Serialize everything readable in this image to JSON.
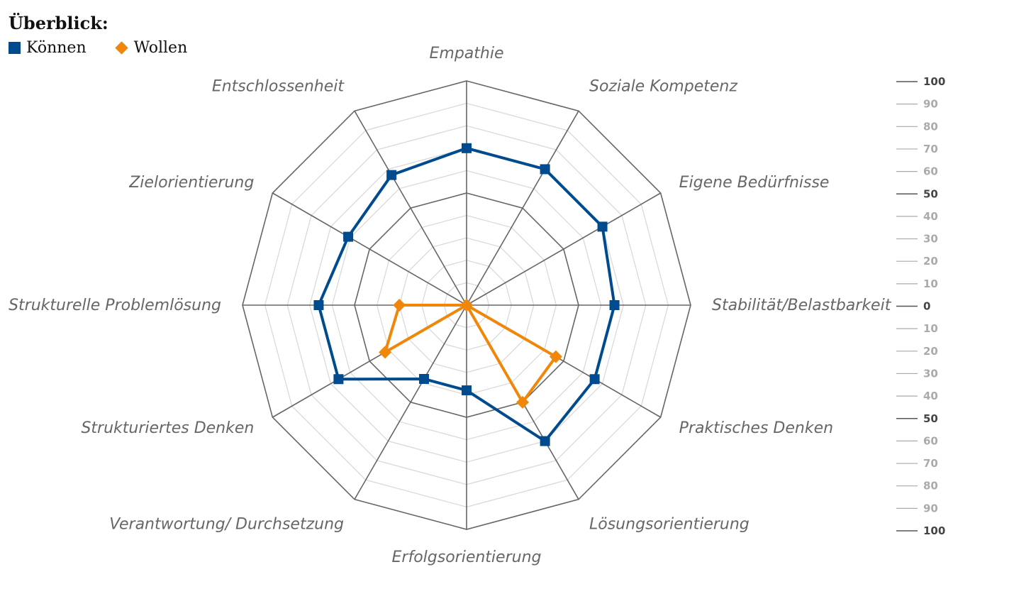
{
  "header": {
    "title": "Überblick:"
  },
  "chart_data": {
    "type": "radar",
    "title": "Überblick:",
    "axes": [
      "Empathie",
      "Soziale Kompetenz",
      "Eigene Bedürfnisse",
      "Stabilität/Belastbarkeit",
      "Praktisches Denken",
      "Lösungsorientierung",
      "Erfolgsorientierung",
      "Verantwortung/ Durchsetzung",
      "Strukturiertes Denken",
      "Strukturelle Problemlösung",
      "Zielorientierung",
      "Entschlossenheit"
    ],
    "rlim": [
      0,
      100
    ],
    "rings": [
      10,
      20,
      30,
      40,
      50,
      60,
      70,
      80,
      90,
      100
    ],
    "major_rings": [
      50,
      100
    ],
    "series": [
      {
        "name": "Können",
        "color": "#004b8d",
        "marker": "square",
        "values": [
          70,
          70,
          70,
          66,
          66,
          70,
          38,
          38,
          66,
          66,
          61,
          67
        ]
      },
      {
        "name": "Wollen",
        "color": "#f0870a",
        "marker": "diamond",
        "values": [
          0,
          0,
          0,
          0,
          46,
          50,
          0,
          0,
          42,
          30,
          0,
          0
        ]
      }
    ],
    "scale_labels": [
      "100",
      "90",
      "80",
      "70",
      "60",
      "50",
      "40",
      "30",
      "20",
      "10",
      "0",
      "10",
      "20",
      "30",
      "40",
      "50",
      "60",
      "70",
      "80",
      "90",
      "100"
    ]
  },
  "colors": {
    "major_grid": "#666666",
    "minor_grid": "#d9d9d9",
    "label": "#666666",
    "scale_major": "#555555",
    "scale_minor": "#aaaaaa"
  }
}
